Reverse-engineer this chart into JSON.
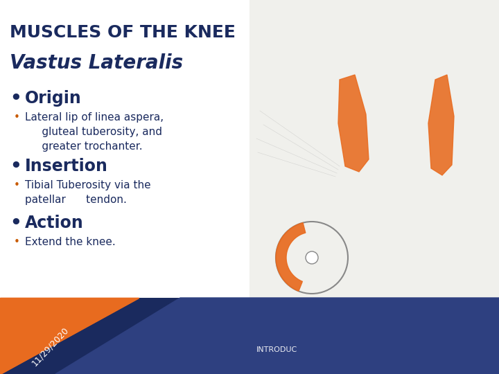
{
  "title": "MUSCLES OF THE KNEE",
  "subtitle": "Vastus Lateralis",
  "bullet_main_color": "#1a2a5e",
  "bullet_sub_color": "#c85a00",
  "title_color": "#1a2a5e",
  "bg_color": "#ffffff",
  "footer_orange": "#e86b1f",
  "footer_dark_blue": "#1a2a5e",
  "footer_mid_blue": "#2e4080",
  "footer_date": "11/29/2020",
  "footer_label": "INTRODUC",
  "sections": [
    {
      "heading": "Origin",
      "bullet": "Lateral lip of linea aspera,\n     gluteal tuberosity, and\n     greater trochanter."
    },
    {
      "heading": "Insertion",
      "bullet": "Tibial Tuberosity via the\npatellar      tendon."
    },
    {
      "heading": "Action",
      "bullet": "Extend the knee."
    }
  ],
  "title_fontsize": 18,
  "subtitle_fontsize": 20,
  "heading_fontsize": 17,
  "bullet_fontsize": 11,
  "date_fontsize": 9,
  "label_fontsize": 8
}
